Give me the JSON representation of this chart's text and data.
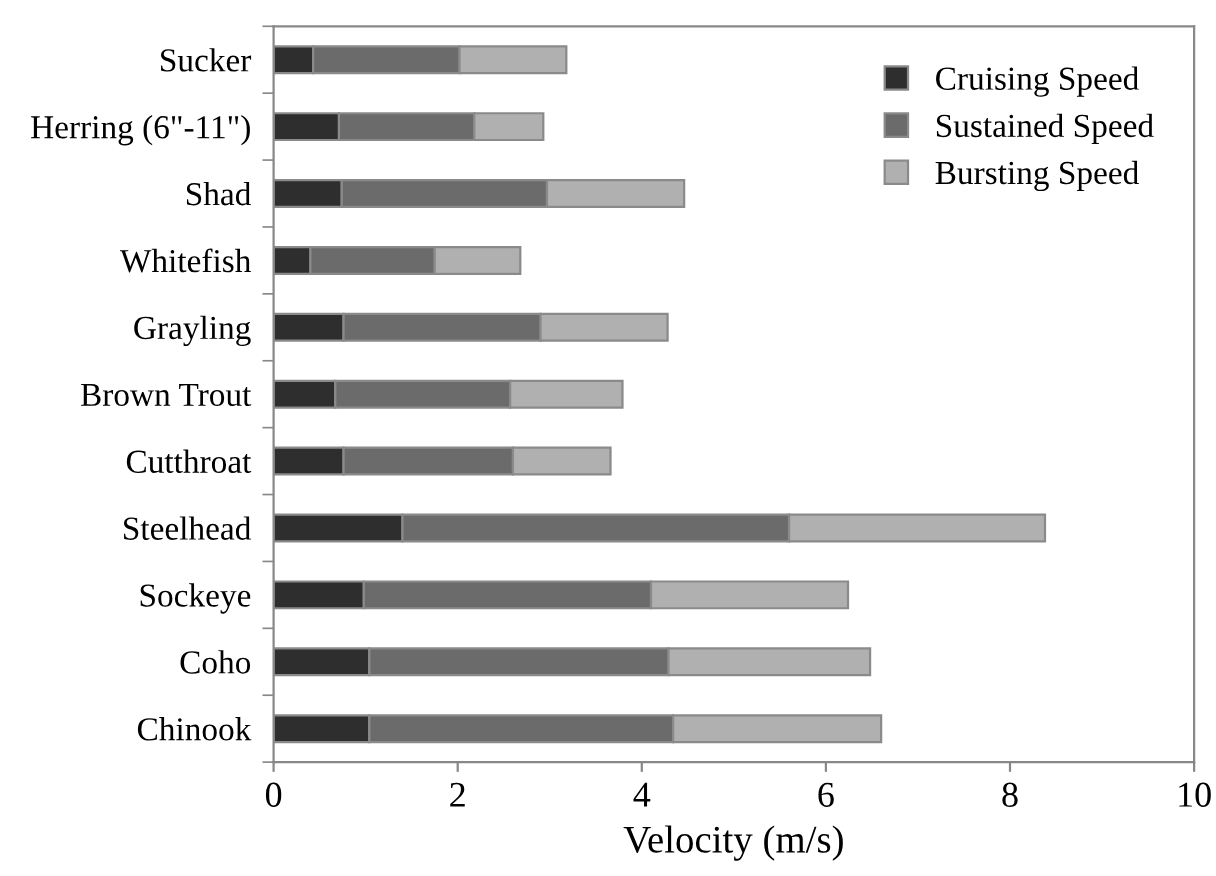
{
  "chart_data": {
    "type": "bar",
    "orientation": "horizontal",
    "stacked": true,
    "xlabel": "Velocity (m/s)",
    "categories": [
      "Sucker",
      "Herring (6\"-11\")",
      "Shad",
      "Whitefish",
      "Grayling",
      "Brown Trout",
      "Cutthroat",
      "Steelhead",
      "Sockeye",
      "Coho",
      "Chinook"
    ],
    "series": [
      {
        "name": "Cruising Speed",
        "color": "#2e2e2e",
        "values": [
          0.43,
          0.71,
          0.74,
          0.4,
          0.76,
          0.67,
          0.76,
          1.4,
          0.98,
          1.04,
          1.04
        ]
      },
      {
        "name": "Sustained Speed",
        "color": "#6b6b6b",
        "values": [
          1.59,
          1.47,
          2.23,
          1.35,
          2.14,
          1.9,
          1.84,
          4.2,
          3.12,
          3.25,
          3.3
        ]
      },
      {
        "name": "Bursting Speed",
        "color": "#b0b0b0",
        "values": [
          1.16,
          0.75,
          1.49,
          0.93,
          1.38,
          1.22,
          1.06,
          2.78,
          2.14,
          2.19,
          2.26
        ]
      }
    ],
    "xlim": [
      0,
      10
    ],
    "xticks": [
      0,
      2,
      4,
      6,
      8,
      10
    ],
    "grid": false,
    "legend": "top right"
  }
}
